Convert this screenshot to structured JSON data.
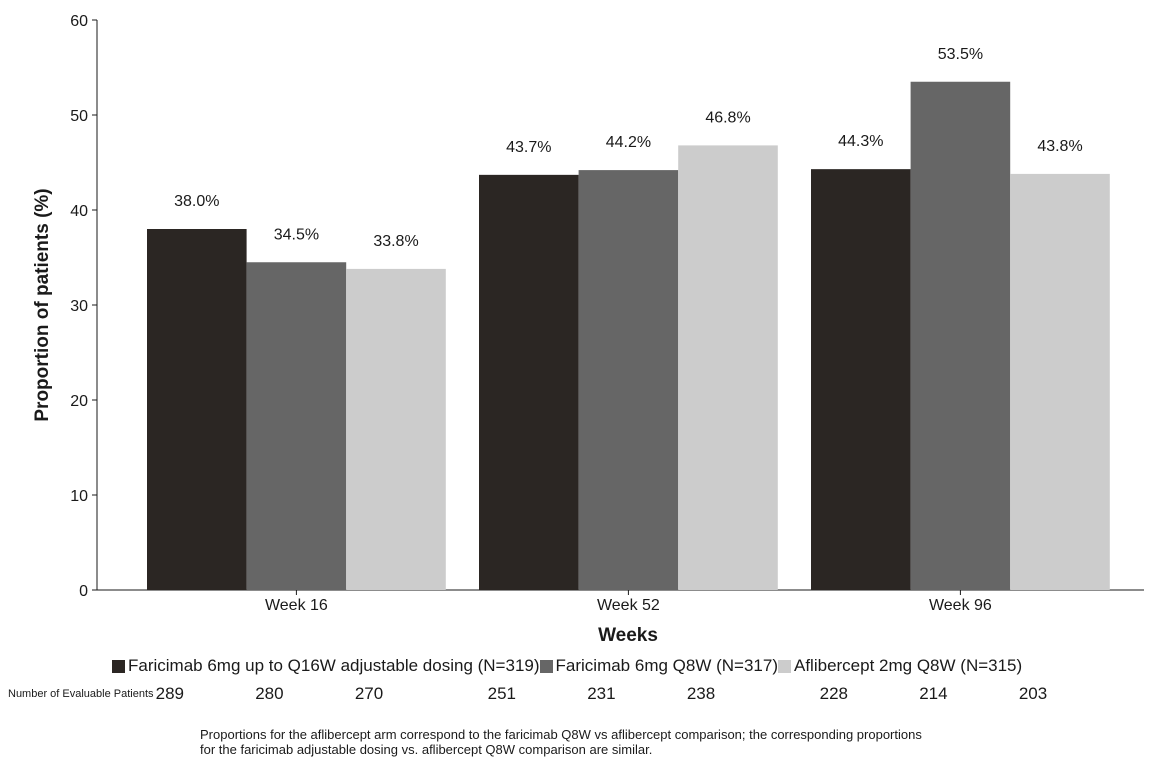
{
  "chart_data": {
    "type": "bar",
    "title": "",
    "xlabel": "Weeks",
    "ylabel": "Proportion of patients (%)",
    "ylim": [
      0,
      60
    ],
    "yticks": [
      0,
      10,
      20,
      30,
      40,
      50,
      60
    ],
    "categories": [
      "Week 16",
      "Week 52",
      "Week 96"
    ],
    "series": [
      {
        "name": "Faricimab 6mg up to Q16W adjustable dosing (N=319)",
        "color": "#2b2623",
        "values": [
          38.0,
          43.7,
          44.3
        ],
        "labels": [
          "38.0%",
          "43.7%",
          "44.3%"
        ]
      },
      {
        "name": "Faricimab 6mg Q8W (N=317)",
        "color": "#666666",
        "values": [
          34.5,
          44.2,
          53.5
        ],
        "labels": [
          "34.5%",
          "44.2%",
          "53.5%"
        ]
      },
      {
        "name": "Aflibercept 2mg Q8W (N=315)",
        "color": "#cccccc",
        "values": [
          33.8,
          46.8,
          43.8
        ],
        "labels": [
          "33.8%",
          "46.8%",
          "43.8%"
        ]
      }
    ],
    "grid": false,
    "legend_position": "bottom"
  },
  "evaluable": {
    "title": "Number of Evaluable Patients",
    "values": [
      "289",
      "280",
      "270",
      "251",
      "231",
      "238",
      "228",
      "214",
      "203"
    ]
  },
  "footnote": {
    "line1": "Proportions for the aflibercept arm correspond to the faricimab Q8W vs aflibercept comparison; the corresponding proportions",
    "line2": "for the faricimab adjustable dosing vs. aflibercept Q8W comparison are similar."
  }
}
